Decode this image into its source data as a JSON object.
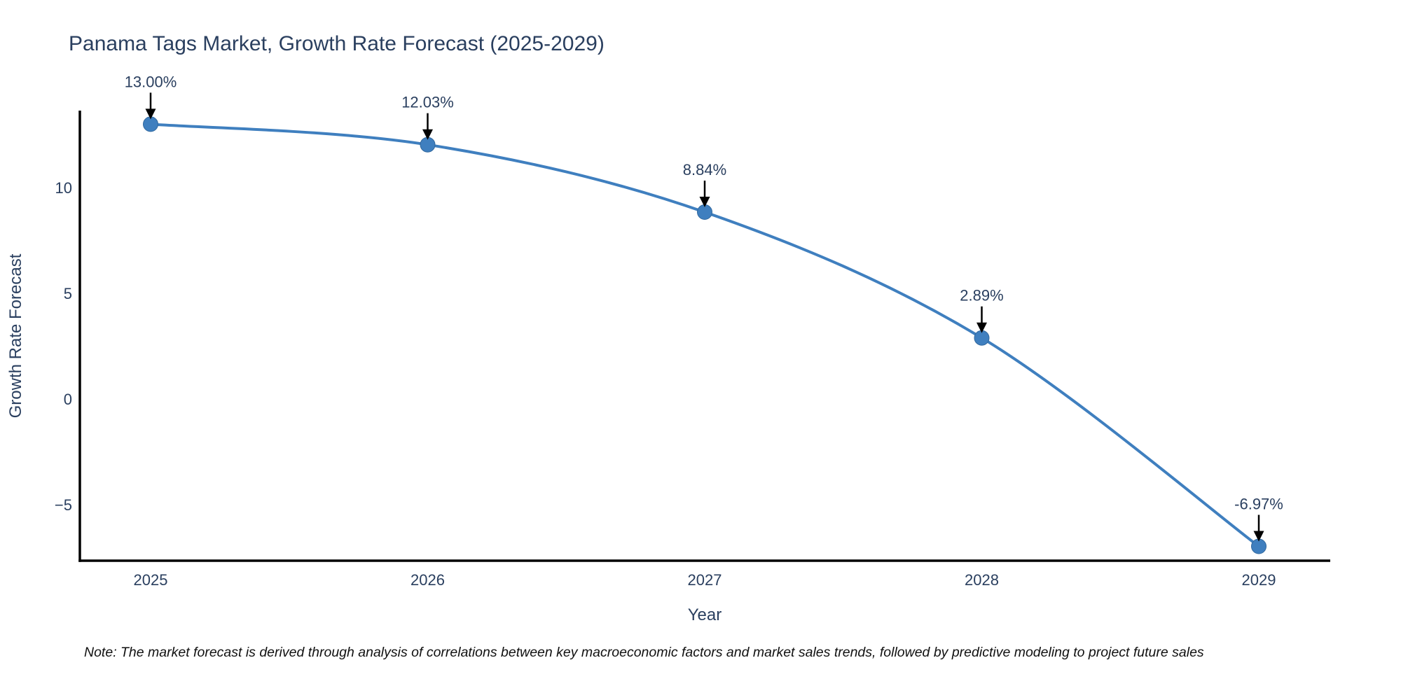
{
  "chart_data": {
    "type": "line",
    "title": "Panama Tags Market, Growth Rate Forecast (2025-2029)",
    "xlabel": "Year",
    "ylabel": "Growth Rate Forecast",
    "x": [
      2025,
      2026,
      2027,
      2028,
      2029
    ],
    "series": [
      {
        "name": "Growth Rate Forecast",
        "values": [
          13.0,
          12.03,
          8.84,
          2.89,
          -6.97
        ]
      }
    ],
    "point_labels": [
      "13.00%",
      "12.03%",
      "8.84%",
      "2.89%",
      "-6.97%"
    ],
    "yticks": [
      {
        "v": 10,
        "label": "10"
      },
      {
        "v": 5,
        "label": "5"
      },
      {
        "v": 0,
        "label": "0"
      },
      {
        "v": -5,
        "label": "−5"
      }
    ],
    "ylim": [
      -7.6,
      13.6
    ],
    "xlim": [
      2024.74,
      2029.26
    ],
    "grid": false,
    "legend": false,
    "line_shape": "spline",
    "annotation_arrows": true,
    "colors": {
      "line": "#3f7fbf",
      "marker": "#3f7fbf",
      "marker_edge": "#31689e",
      "text": "#2a3f5f",
      "axis": "#000000",
      "arrow": "#000000",
      "note": "#111111",
      "background": "#ffffff"
    }
  },
  "note": {
    "text": "Note: The market forecast is derived through analysis of correlations between key macroeconomic factors and market sales trends, followed by predictive modeling to project future sales"
  }
}
